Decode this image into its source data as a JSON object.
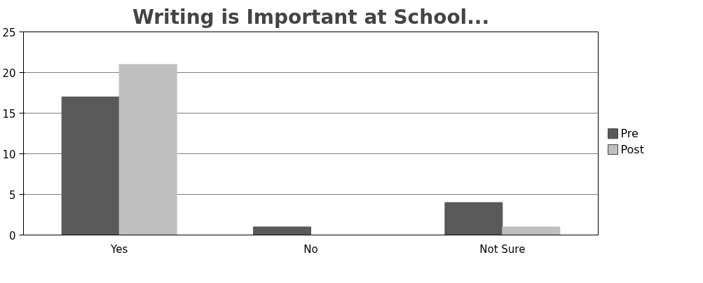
{
  "chart_data": {
    "type": "bar",
    "title": "Writing is Important at School...",
    "categories": [
      "Yes",
      "No",
      "Not Sure"
    ],
    "series": [
      {
        "name": "Pre",
        "color": "#595959",
        "values": [
          17,
          1,
          4
        ]
      },
      {
        "name": "Post",
        "color": "#bfbfbf",
        "values": [
          21,
          0,
          1
        ]
      }
    ],
    "ylim": [
      0,
      25
    ],
    "yticks": [
      0,
      5,
      10,
      15,
      20,
      25
    ],
    "grid": "y",
    "legend": "right"
  }
}
